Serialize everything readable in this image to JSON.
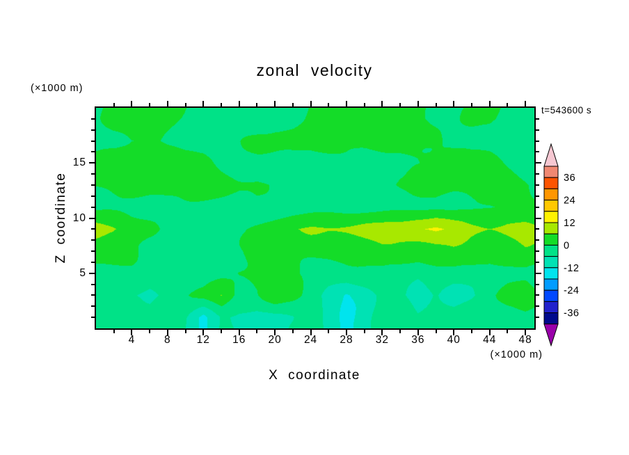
{
  "title": "zonal velocity",
  "time_label": "t=543600 s",
  "x_axis": {
    "label": "X coordinate",
    "unit": "(×1000 m)",
    "range": [
      0,
      49
    ],
    "major_ticks": [
      4,
      8,
      12,
      16,
      20,
      24,
      28,
      32,
      36,
      40,
      44,
      48
    ],
    "major_step": 4,
    "minor_step": 2
  },
  "y_axis": {
    "label": "Z coordinate",
    "unit": "(×1000 m)",
    "range": [
      0,
      20
    ],
    "major_ticks": [
      5,
      10,
      15
    ],
    "major_step": 5,
    "minor_step": 1
  },
  "colorbar": {
    "labels": [
      36,
      24,
      12,
      0,
      -12,
      -24,
      -36
    ],
    "arrow_top_color": "#F6C8D2",
    "arrow_bottom_color": "#9900AA",
    "bands": [
      {
        "range": [
          36,
          42
        ],
        "color": "#F08872"
      },
      {
        "range": [
          30,
          36
        ],
        "color": "#FC5400"
      },
      {
        "range": [
          24,
          30
        ],
        "color": "#FF9600"
      },
      {
        "range": [
          18,
          24
        ],
        "color": "#FFC800"
      },
      {
        "range": [
          12,
          18
        ],
        "color": "#FFF200"
      },
      {
        "range": [
          6,
          12
        ],
        "color": "#A8E800"
      },
      {
        "range": [
          0,
          6
        ],
        "color": "#14DC28"
      },
      {
        "range": [
          -6,
          0
        ],
        "color": "#00E287"
      },
      {
        "range": [
          -12,
          -6
        ],
        "color": "#00E2B4"
      },
      {
        "range": [
          -18,
          -12
        ],
        "color": "#00E4EE"
      },
      {
        "range": [
          -24,
          -18
        ],
        "color": "#009CFF"
      },
      {
        "range": [
          -30,
          -24
        ],
        "color": "#0048FF"
      },
      {
        "range": [
          -36,
          -30
        ],
        "color": "#2222CC"
      },
      {
        "range": [
          -42,
          -36
        ],
        "color": "#000A8C"
      }
    ]
  },
  "chart_data": {
    "type": "filled_contour",
    "title": "zonal velocity",
    "xlabel": "X coordinate (×1000 m)",
    "ylabel": "Z coordinate (×1000 m)",
    "time_annotation": "t=543600 s",
    "contour_interval": 6,
    "levels": [
      -42,
      -36,
      -30,
      -24,
      -18,
      -12,
      -6,
      0,
      6,
      12,
      18,
      24,
      30,
      36,
      42
    ],
    "x": [
      0,
      2,
      4,
      6,
      8,
      10,
      12,
      14,
      16,
      18,
      20,
      22,
      24,
      26,
      28,
      30,
      32,
      34,
      36,
      38,
      40,
      42,
      44,
      46,
      48,
      50
    ],
    "z": [
      19,
      17,
      15,
      13,
      11,
      9,
      7,
      5,
      3,
      1
    ],
    "values": [
      [
        -2,
        2,
        3,
        2,
        1,
        -1,
        -2,
        -2,
        -1,
        -2,
        -2,
        -2,
        1,
        2,
        3,
        3,
        2,
        2,
        1,
        -1,
        -2,
        1,
        1,
        -1,
        -2,
        -2
      ],
      [
        -2,
        -1,
        1,
        1,
        -1,
        -2,
        -2,
        -2,
        -1,
        1,
        2,
        2,
        1,
        2,
        2,
        2,
        3,
        2,
        2,
        1,
        -1,
        -2,
        -1,
        -2,
        -2,
        -2
      ],
      [
        2,
        2,
        3,
        2,
        2,
        1,
        1,
        -1,
        -2,
        -2,
        -2,
        -2,
        -2,
        -2,
        -1,
        -2,
        -2,
        -2,
        -1,
        1,
        2,
        2,
        1,
        -1,
        -2,
        -2
      ],
      [
        1,
        2,
        2,
        2,
        3,
        2,
        2,
        2,
        1,
        1,
        -1,
        -2,
        -2,
        -1,
        -2,
        -2,
        -1,
        1,
        2,
        2,
        2,
        3,
        2,
        2,
        1,
        -1
      ],
      [
        -2,
        -2,
        -2,
        -2,
        -2,
        -2,
        -2,
        -2,
        -2,
        -2,
        -2,
        -2,
        -2,
        -2,
        -2,
        -2,
        -2,
        -2,
        -2,
        -1,
        -2,
        -2,
        -1,
        1,
        1,
        -1
      ],
      [
        8,
        7,
        3,
        1,
        -1,
        -2,
        -2,
        -2,
        -1,
        1,
        3,
        5,
        6,
        6,
        7,
        8,
        8,
        9,
        12,
        13,
        10,
        8,
        7,
        8,
        8,
        7
      ],
      [
        3,
        2,
        1,
        -1,
        -2,
        -2,
        -2,
        -2,
        -1,
        1,
        2,
        2,
        2,
        2,
        2,
        3,
        5,
        4,
        3,
        4,
        5,
        3,
        2,
        3,
        5,
        3
      ],
      [
        -2,
        -2,
        -2,
        -3,
        -2,
        -2,
        -3,
        -2,
        1,
        2,
        2,
        1,
        -2,
        -3,
        -2,
        -2,
        -2,
        -3,
        -5,
        -3,
        -2,
        -2,
        -3,
        -2,
        -1,
        -2
      ],
      [
        -2,
        -3,
        -6,
        -7,
        -4,
        -1,
        1,
        6,
        -2,
        -1,
        5,
        3,
        -2,
        -8,
        -13,
        -9,
        -3,
        -4,
        -10,
        -5,
        -9,
        -7,
        -2,
        2,
        4,
        -1
      ],
      [
        -2,
        -2,
        -3,
        -4,
        -2,
        -5,
        -13,
        -5,
        -7,
        -8,
        -7,
        -6,
        -3,
        -8,
        -14,
        -9,
        -3,
        -2,
        -5,
        -3,
        -4,
        -3,
        -2,
        -2,
        -2,
        -3
      ]
    ]
  }
}
